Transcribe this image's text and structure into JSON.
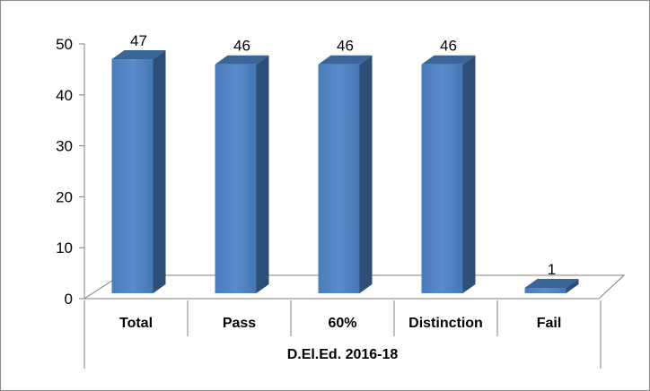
{
  "chart_data": {
    "type": "bar",
    "categories": [
      "Total",
      "Pass",
      "60%",
      "Distinction",
      "Fail"
    ],
    "values": [
      47,
      46,
      46,
      46,
      1
    ],
    "group_label": "D.El.Ed. 2016-18",
    "ylim": [
      0,
      50
    ],
    "yticks": [
      0,
      10,
      20,
      30,
      40,
      50
    ],
    "grid": false,
    "legend": "none",
    "style": "3d-column",
    "colors": {
      "bar_front": "#4f81bd",
      "bar_side": "#2d4f77",
      "bar_top": "#3c6597",
      "axis": "#808080"
    }
  }
}
